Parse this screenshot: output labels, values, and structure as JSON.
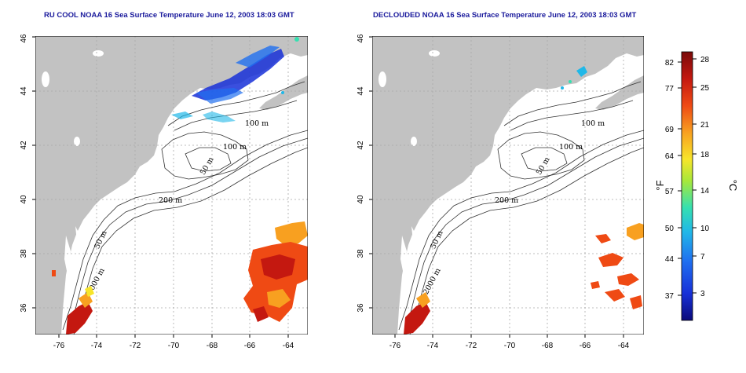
{
  "panels": [
    {
      "id": "left",
      "title": "RU COOL NOAA 16 Sea Surface Temperature June 12, 2003 18:03 GMT",
      "x_ticks": [
        "-76",
        "-74",
        "-72",
        "-70",
        "-68",
        "-66",
        "-64"
      ],
      "y_ticks": [
        "36",
        "38",
        "40",
        "42",
        "44",
        "46"
      ],
      "contour_labels": [
        "100 m",
        "100 m",
        "50 m",
        "200 m",
        "50 m",
        "2000 m"
      ]
    },
    {
      "id": "right",
      "title": "DECLOUDED NOAA 16 Sea Surface Temperature June 12, 2003 18:03 GMT",
      "x_ticks": [
        "-76",
        "-74",
        "-72",
        "-70",
        "-68",
        "-66",
        "-64"
      ],
      "y_ticks": [
        "36",
        "38",
        "40",
        "42",
        "44",
        "46"
      ],
      "contour_labels": [
        "100 m",
        "100 m",
        "50 m",
        "200 m",
        "50 m",
        "2000 m"
      ]
    }
  ],
  "colorbar": {
    "fahrenheit_unit": "°F",
    "celsius_unit": "°C",
    "fahrenheit_ticks": [
      "82",
      "77",
      "69",
      "64",
      "57",
      "50",
      "44",
      "37"
    ],
    "celsius_ticks": [
      "28",
      "25",
      "21",
      "18",
      "14",
      "10",
      "7",
      "3"
    ],
    "colors": [
      "#0a0a7a",
      "#1730d8",
      "#1f6ff0",
      "#20b8e8",
      "#35e0b0",
      "#a8e83a",
      "#f7e52a",
      "#f8a020",
      "#ef4a14",
      "#c41810",
      "#7a0a0a"
    ]
  },
  "colors": {
    "land": "#c2c2c2",
    "ocean": "#ffffff",
    "title": "#1a1a9c",
    "grid": "#a8a8a8"
  }
}
